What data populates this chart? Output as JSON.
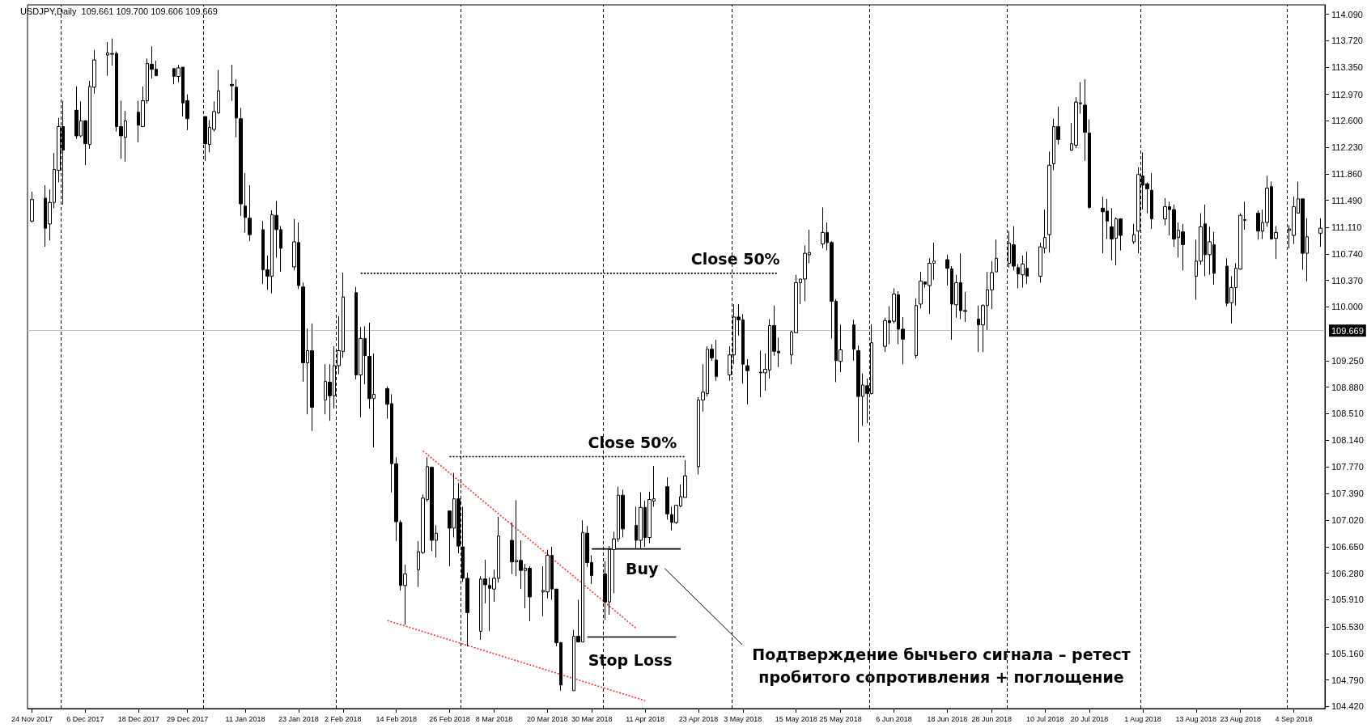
{
  "chart_data": {
    "type": "candlestick",
    "title": "USDJPY,Daily  109.661 109.700 109.606 109.669",
    "marker": "none",
    "x": [
      "2017-11-24",
      "2017-11-27",
      "2017-11-28",
      "2017-11-29",
      "2017-11-30",
      "2017-12-01",
      "2017-12-04",
      "2017-12-05",
      "2017-12-06",
      "2017-12-07",
      "2017-12-08",
      "2017-12-11",
      "2017-12-12",
      "2017-12-13",
      "2017-12-14",
      "2017-12-15",
      "2017-12-18",
      "2017-12-19",
      "2017-12-20",
      "2017-12-21",
      "2017-12-22",
      "2017-12-26",
      "2017-12-27",
      "2017-12-28",
      "2017-12-29",
      "2018-01-02",
      "2018-01-03",
      "2018-01-04",
      "2018-01-05",
      "2018-01-08",
      "2018-01-09",
      "2018-01-10",
      "2018-01-11",
      "2018-01-12",
      "2018-01-15",
      "2018-01-16",
      "2018-01-17",
      "2018-01-18",
      "2018-01-19",
      "2018-01-22",
      "2018-01-23",
      "2018-01-24",
      "2018-01-25",
      "2018-01-26",
      "2018-01-29",
      "2018-01-30",
      "2018-01-31",
      "2018-02-01",
      "2018-02-02",
      "2018-02-05",
      "2018-02-06",
      "2018-02-07",
      "2018-02-08",
      "2018-02-09",
      "2018-02-12",
      "2018-02-13",
      "2018-02-14",
      "2018-02-15",
      "2018-02-16",
      "2018-02-19",
      "2018-02-20",
      "2018-02-21",
      "2018-02-22",
      "2018-02-23",
      "2018-02-26",
      "2018-02-27",
      "2018-02-28",
      "2018-03-01",
      "2018-03-02",
      "2018-03-05",
      "2018-03-06",
      "2018-03-07",
      "2018-03-08",
      "2018-03-09",
      "2018-03-12",
      "2018-03-13",
      "2018-03-14",
      "2018-03-15",
      "2018-03-16",
      "2018-03-19",
      "2018-03-20",
      "2018-03-21",
      "2018-03-22",
      "2018-03-23",
      "2018-03-26",
      "2018-03-27",
      "2018-03-28",
      "2018-03-29",
      "2018-03-30",
      "2018-04-02",
      "2018-04-03",
      "2018-04-04",
      "2018-04-05",
      "2018-04-06",
      "2018-04-09",
      "2018-04-10",
      "2018-04-11",
      "2018-04-12",
      "2018-04-13",
      "2018-04-16",
      "2018-04-17",
      "2018-04-18",
      "2018-04-19",
      "2018-04-20",
      "2018-04-23",
      "2018-04-24",
      "2018-04-25",
      "2018-04-26",
      "2018-04-27",
      "2018-04-30",
      "2018-05-01",
      "2018-05-02",
      "2018-05-03",
      "2018-05-04",
      "2018-05-07",
      "2018-05-08",
      "2018-05-09",
      "2018-05-10",
      "2018-05-11",
      "2018-05-14",
      "2018-05-15",
      "2018-05-16",
      "2018-05-17",
      "2018-05-18",
      "2018-05-21",
      "2018-05-22",
      "2018-05-23",
      "2018-05-24",
      "2018-05-25",
      "2018-05-28",
      "2018-05-29",
      "2018-05-30",
      "2018-05-31",
      "2018-06-01",
      "2018-06-04",
      "2018-06-05",
      "2018-06-06",
      "2018-06-07",
      "2018-06-08",
      "2018-06-11",
      "2018-06-12",
      "2018-06-13",
      "2018-06-14",
      "2018-06-15",
      "2018-06-18",
      "2018-06-19",
      "2018-06-20",
      "2018-06-21",
      "2018-06-22",
      "2018-06-25",
      "2018-06-26",
      "2018-06-27",
      "2018-06-28",
      "2018-06-29",
      "2018-07-02",
      "2018-07-03",
      "2018-07-04",
      "2018-07-05",
      "2018-07-06",
      "2018-07-09",
      "2018-07-10",
      "2018-07-11",
      "2018-07-12",
      "2018-07-13",
      "2018-07-16",
      "2018-07-17",
      "2018-07-18",
      "2018-07-19",
      "2018-07-20",
      "2018-07-23",
      "2018-07-24",
      "2018-07-25",
      "2018-07-26",
      "2018-07-27",
      "2018-07-30",
      "2018-07-31",
      "2018-08-01",
      "2018-08-02",
      "2018-08-03",
      "2018-08-06",
      "2018-08-07",
      "2018-08-08",
      "2018-08-09",
      "2018-08-10",
      "2018-08-13",
      "2018-08-14",
      "2018-08-15",
      "2018-08-16",
      "2018-08-17",
      "2018-08-20",
      "2018-08-21",
      "2018-08-22",
      "2018-08-23",
      "2018-08-24",
      "2018-08-27",
      "2018-08-28",
      "2018-08-29",
      "2018-08-30",
      "2018-08-31",
      "2018-09-03",
      "2018-09-04",
      "2018-09-05",
      "2018-09-06",
      "2018-09-07",
      "2018-09-10"
    ],
    "ohlc": [
      [
        111.2,
        111.61,
        111.18,
        111.5
      ],
      [
        111.52,
        111.7,
        110.84,
        111.1
      ],
      [
        111.16,
        111.64,
        110.93,
        111.46
      ],
      [
        111.46,
        112.15,
        111.38,
        111.92
      ],
      [
        111.91,
        112.64,
        111.74,
        112.52
      ],
      [
        112.52,
        112.88,
        111.43,
        112.19
      ],
      [
        112.75,
        113.08,
        112.35,
        112.39
      ],
      [
        112.39,
        112.87,
        112.37,
        112.6
      ],
      [
        112.6,
        112.61,
        111.98,
        112.28
      ],
      [
        112.27,
        113.16,
        112.21,
        113.08
      ],
      [
        113.07,
        113.59,
        112.98,
        113.45
      ],
      [
        113.52,
        113.7,
        113.23,
        113.55
      ],
      [
        113.54,
        113.75,
        113.37,
        113.53
      ],
      [
        113.54,
        113.57,
        112.45,
        112.52
      ],
      [
        112.52,
        112.88,
        112.07,
        112.39
      ],
      [
        112.37,
        112.74,
        112.03,
        112.6
      ],
      [
        112.72,
        112.88,
        112.3,
        112.54
      ],
      [
        112.52,
        113.08,
        112.51,
        112.88
      ],
      [
        112.88,
        113.47,
        112.84,
        113.4
      ],
      [
        113.39,
        113.64,
        113.19,
        113.32
      ],
      [
        113.32,
        113.44,
        113.23,
        113.23
      ],
      [
        113.33,
        113.33,
        113.11,
        113.22
      ],
      [
        113.22,
        113.38,
        113.14,
        113.34
      ],
      [
        113.35,
        113.35,
        112.66,
        112.85
      ],
      [
        112.88,
        112.97,
        112.47,
        112.63
      ],
      [
        112.66,
        112.66,
        112.04,
        112.28
      ],
      [
        112.27,
        112.61,
        112.16,
        112.51
      ],
      [
        112.48,
        112.87,
        112.45,
        112.73
      ],
      [
        112.71,
        113.31,
        112.7,
        113.02
      ],
      [
        113.11,
        113.38,
        112.88,
        113.09
      ],
      [
        113.07,
        113.18,
        112.37,
        112.64
      ],
      [
        112.63,
        112.78,
        111.27,
        111.44
      ],
      [
        111.41,
        111.87,
        111.04,
        111.25
      ],
      [
        111.24,
        111.7,
        110.92,
        111.01
      ],
      [
        111.08,
        111.2,
        110.32,
        110.52
      ],
      [
        110.52,
        110.72,
        110.24,
        110.43
      ],
      [
        110.43,
        111.35,
        110.19,
        111.29
      ],
      [
        111.28,
        111.48,
        110.69,
        111.08
      ],
      [
        111.08,
        111.13,
        110.49,
        110.82
      ],
      [
        110.56,
        111.23,
        110.51,
        110.91
      ],
      [
        110.9,
        111.18,
        110.25,
        110.3
      ],
      [
        110.28,
        110.34,
        108.96,
        109.22
      ],
      [
        109.22,
        109.7,
        108.5,
        109.39
      ],
      [
        109.39,
        109.77,
        108.27,
        108.6
      ],
      [
        108.7,
        109.2,
        108.5,
        108.96
      ],
      [
        108.95,
        109.2,
        108.41,
        108.76
      ],
      [
        108.76,
        109.45,
        108.58,
        109.18
      ],
      [
        109.18,
        109.87,
        109.06,
        109.39
      ],
      [
        109.38,
        110.48,
        109.29,
        110.14
      ],
      [
        110.2,
        110.28,
        108.99,
        109.05
      ],
      [
        109.05,
        109.72,
        108.46,
        109.56
      ],
      [
        109.56,
        109.73,
        108.92,
        109.32
      ],
      [
        109.31,
        109.78,
        108.58,
        108.72
      ],
      [
        108.72,
        109.35,
        108.04,
        108.78
      ],
      [
        108.86,
        108.89,
        108.44,
        108.64
      ],
      [
        108.65,
        108.78,
        107.41,
        107.81
      ],
      [
        107.81,
        107.9,
        106.73,
        107.0
      ],
      [
        106.99,
        107.02,
        106.04,
        106.11
      ],
      [
        106.11,
        106.4,
        105.56,
        106.27
      ],
      [
        106.33,
        106.73,
        106.09,
        106.58
      ],
      [
        106.57,
        107.38,
        106.55,
        107.33
      ],
      [
        107.31,
        107.9,
        107.28,
        107.77
      ],
      [
        107.76,
        107.77,
        106.59,
        106.74
      ],
      [
        106.74,
        106.95,
        106.5,
        106.84
      ],
      [
        107.15,
        107.15,
        106.38,
        106.91
      ],
      [
        106.91,
        107.68,
        106.78,
        107.32
      ],
      [
        107.32,
        107.54,
        106.56,
        106.66
      ],
      [
        106.65,
        107.21,
        106.16,
        106.21
      ],
      [
        106.21,
        106.29,
        105.26,
        105.73
      ],
      [
        105.47,
        106.24,
        105.35,
        106.2
      ],
      [
        106.2,
        106.47,
        105.86,
        106.12
      ],
      [
        106.11,
        106.22,
        105.47,
        106.07
      ],
      [
        106.06,
        106.33,
        105.88,
        106.21
      ],
      [
        106.21,
        107.07,
        106.15,
        106.8
      ],
      [
        106.74,
        106.99,
        106.27,
        106.44
      ],
      [
        106.44,
        107.3,
        106.24,
        106.46
      ],
      [
        106.46,
        106.74,
        106.06,
        106.32
      ],
      [
        106.32,
        106.41,
        105.79,
        106.35
      ],
      [
        106.35,
        106.38,
        105.61,
        105.95
      ],
      [
        106.02,
        106.38,
        105.68,
        106.04
      ],
      [
        106.02,
        106.61,
        105.93,
        106.53
      ],
      [
        106.53,
        106.65,
        105.91,
        106.06
      ],
      [
        106.06,
        106.06,
        105.26,
        105.31
      ],
      [
        105.31,
        105.32,
        104.64,
        104.72
      ],
      [
        104.64,
        105.49,
        104.64,
        105.4
      ],
      [
        105.4,
        105.91,
        105.32,
        105.32
      ],
      [
        105.32,
        107.02,
        105.32,
        106.85
      ],
      [
        106.84,
        106.94,
        106.37,
        106.43
      ],
      [
        106.43,
        106.53,
        106.13,
        106.25
      ],
      [
        106.27,
        106.45,
        105.63,
        105.88
      ],
      [
        105.88,
        106.66,
        105.7,
        106.61
      ],
      [
        106.61,
        106.86,
        106.0,
        106.76
      ],
      [
        106.76,
        107.49,
        106.72,
        107.37
      ],
      [
        107.37,
        107.45,
        106.78,
        106.9
      ],
      [
        106.95,
        107.21,
        106.62,
        106.74
      ],
      [
        106.74,
        107.41,
        106.63,
        107.2
      ],
      [
        107.2,
        107.29,
        106.65,
        106.78
      ],
      [
        106.78,
        107.42,
        106.7,
        107.31
      ],
      [
        107.29,
        107.78,
        107.21,
        107.32
      ],
      [
        107.49,
        107.62,
        107.03,
        107.11
      ],
      [
        107.1,
        107.21,
        106.88,
        106.99
      ],
      [
        106.99,
        107.23,
        106.97,
        107.23
      ],
      [
        107.22,
        107.52,
        107.2,
        107.35
      ],
      [
        107.34,
        107.86,
        107.34,
        107.64
      ],
      [
        107.77,
        108.74,
        107.66,
        108.7
      ],
      [
        108.7,
        109.2,
        108.54,
        108.81
      ],
      [
        108.79,
        109.45,
        108.75,
        109.41
      ],
      [
        109.41,
        109.48,
        109.25,
        109.29
      ],
      [
        109.26,
        109.54,
        108.97,
        109.03
      ],
      [
        109.05,
        109.45,
        108.97,
        109.33
      ],
      [
        109.33,
        110.04,
        109.2,
        109.86
      ],
      [
        109.86,
        110.04,
        109.6,
        109.82
      ],
      [
        109.82,
        109.9,
        108.93,
        109.2
      ],
      [
        109.18,
        109.27,
        108.64,
        109.11
      ],
      [
        109.09,
        109.39,
        108.74,
        109.08
      ],
      [
        109.08,
        109.35,
        108.83,
        109.13
      ],
      [
        109.12,
        109.83,
        109.0,
        109.74
      ],
      [
        109.74,
        110.02,
        109.32,
        109.38
      ],
      [
        109.38,
        109.57,
        109.16,
        109.36
      ],
      [
        109.33,
        109.67,
        109.2,
        109.65
      ],
      [
        109.64,
        110.45,
        109.64,
        110.34
      ],
      [
        110.34,
        110.39,
        110.04,
        110.39
      ],
      [
        110.39,
        110.86,
        110.08,
        110.75
      ],
      [
        110.73,
        111.08,
        110.61,
        110.76
      ],
      [
        110.88,
        111.39,
        110.82,
        111.04
      ],
      [
        111.04,
        111.18,
        110.79,
        110.9
      ],
      [
        110.9,
        110.92,
        109.56,
        110.08
      ],
      [
        110.08,
        110.11,
        108.95,
        109.25
      ],
      [
        109.24,
        109.75,
        109.09,
        109.4
      ],
      [
        109.75,
        109.82,
        109.25,
        109.41
      ],
      [
        109.39,
        109.46,
        108.11,
        108.75
      ],
      [
        108.75,
        109.07,
        108.34,
        108.91
      ],
      [
        108.9,
        109.0,
        108.38,
        108.79
      ],
      [
        108.79,
        109.76,
        108.78,
        109.5
      ],
      [
        109.45,
        109.85,
        109.37,
        109.81
      ],
      [
        109.81,
        110.01,
        109.48,
        109.78
      ],
      [
        109.8,
        110.26,
        109.77,
        110.18
      ],
      [
        110.17,
        110.22,
        109.48,
        109.69
      ],
      [
        109.69,
        109.86,
        109.2,
        109.55
      ],
      [
        109.32,
        110.12,
        109.28,
        110.02
      ],
      [
        110.04,
        110.49,
        109.98,
        110.36
      ],
      [
        110.35,
        110.35,
        110.27,
        110.32
      ],
      [
        110.3,
        110.68,
        109.9,
        110.61
      ],
      [
        110.61,
        110.9,
        110.38,
        110.64
      ],
      [
        110.66,
        110.73,
        110.3,
        110.54
      ],
      [
        110.53,
        110.57,
        109.54,
        110.04
      ],
      [
        110.03,
        110.45,
        109.85,
        110.34
      ],
      [
        110.34,
        110.75,
        109.83,
        109.95
      ],
      [
        109.95,
        110.21,
        109.79,
        109.94
      ],
      [
        109.83,
        110.02,
        109.37,
        109.75
      ],
      [
        109.75,
        110.04,
        109.37,
        110.02
      ],
      [
        110.02,
        110.49,
        109.68,
        110.24
      ],
      [
        110.24,
        110.64,
        109.97,
        110.48
      ],
      [
        110.49,
        110.94,
        110.49,
        110.68
      ],
      [
        110.61,
        111.06,
        110.55,
        110.89
      ],
      [
        110.87,
        111.13,
        110.51,
        110.57
      ],
      [
        110.55,
        110.6,
        110.26,
        110.46
      ],
      [
        110.45,
        110.72,
        110.27,
        110.6
      ],
      [
        110.54,
        110.77,
        110.32,
        110.43
      ],
      [
        110.43,
        110.9,
        110.34,
        110.84
      ],
      [
        110.82,
        111.36,
        110.75,
        110.97
      ],
      [
        111.01,
        112.17,
        110.76,
        111.98
      ],
      [
        112.0,
        112.63,
        111.91,
        112.52
      ],
      [
        112.52,
        112.8,
        112.27,
        112.34
      ],
      [
        112.19,
        112.57,
        112.18,
        112.28
      ],
      [
        112.26,
        112.93,
        112.22,
        112.86
      ],
      [
        112.85,
        113.14,
        112.7,
        112.84
      ],
      [
        112.82,
        113.18,
        112.04,
        112.44
      ],
      [
        112.43,
        112.62,
        111.37,
        111.39
      ],
      [
        111.38,
        111.54,
        110.75,
        111.33
      ],
      [
        111.34,
        111.51,
        110.95,
        111.2
      ],
      [
        111.12,
        111.38,
        110.65,
        110.95
      ],
      [
        110.96,
        111.25,
        110.58,
        111.23
      ],
      [
        111.23,
        111.24,
        110.79,
        111.0
      ],
      [
        110.91,
        111.16,
        110.88,
        111.01
      ],
      [
        111.06,
        111.95,
        110.75,
        111.85
      ],
      [
        111.83,
        112.16,
        111.36,
        111.7
      ],
      [
        111.72,
        111.74,
        111.31,
        111.65
      ],
      [
        111.63,
        111.87,
        111.09,
        111.23
      ],
      [
        111.23,
        111.52,
        111.14,
        111.4
      ],
      [
        111.4,
        111.47,
        111.0,
        111.36
      ],
      [
        111.36,
        111.43,
        110.84,
        110.95
      ],
      [
        110.97,
        111.18,
        110.69,
        111.07
      ],
      [
        111.05,
        111.16,
        110.51,
        110.87
      ],
      [
        110.43,
        110.94,
        110.1,
        110.64
      ],
      [
        110.64,
        111.31,
        110.59,
        111.12
      ],
      [
        111.16,
        111.43,
        110.43,
        110.73
      ],
      [
        110.73,
        111.12,
        110.45,
        110.91
      ],
      [
        110.87,
        111.05,
        110.31,
        110.47
      ],
      [
        110.57,
        110.68,
        110.01,
        110.05
      ],
      [
        110.06,
        110.43,
        109.77,
        110.27
      ],
      [
        110.27,
        110.61,
        110.02,
        110.54
      ],
      [
        110.53,
        111.31,
        110.52,
        111.28
      ],
      [
        111.21,
        111.47,
        111.08,
        111.22
      ],
      [
        111.31,
        111.35,
        110.94,
        111.06
      ],
      [
        111.06,
        111.36,
        110.95,
        111.18
      ],
      [
        111.18,
        111.83,
        111.12,
        111.66
      ],
      [
        111.68,
        111.75,
        110.94,
        110.95
      ],
      [
        110.96,
        111.13,
        110.67,
        111.04
      ],
      [
        111.07,
        111.14,
        110.82,
        111.09
      ],
      [
        111.0,
        111.54,
        110.88,
        111.4
      ],
      [
        111.31,
        111.75,
        111.31,
        111.51
      ],
      [
        111.51,
        111.51,
        110.52,
        110.75
      ],
      [
        110.75,
        111.24,
        110.36,
        110.98
      ],
      [
        111.03,
        111.24,
        110.84,
        111.1
      ]
    ],
    "xticks": [
      {
        "value": "2017-11-24",
        "label": "24 Nov 2017"
      },
      {
        "value": "2017-12-06",
        "label": "6 Dec 2017"
      },
      {
        "value": "2017-12-18",
        "label": "18 Dec 2017"
      },
      {
        "value": "2017-12-29",
        "label": "29 Dec 2017"
      },
      {
        "value": "2018-01-11",
        "label": "11 Jan 2018"
      },
      {
        "value": "2018-01-23",
        "label": "23 Jan 2018"
      },
      {
        "value": "2018-02-02",
        "label": "2 Feb 2018"
      },
      {
        "value": "2018-02-14",
        "label": "14 Feb 2018"
      },
      {
        "value": "2018-02-26",
        "label": "26 Feb 2018"
      },
      {
        "value": "2018-03-08",
        "label": "8 Mar 2018"
      },
      {
        "value": "2018-03-20",
        "label": "20 Mar 2018"
      },
      {
        "value": "2018-03-30",
        "label": "30 Mar 2018"
      },
      {
        "value": "2018-04-11",
        "label": "11 Apr 2018"
      },
      {
        "value": "2018-04-23",
        "label": "23 Apr 2018"
      },
      {
        "value": "2018-05-03",
        "label": "3 May 2018"
      },
      {
        "value": "2018-05-15",
        "label": "15 May 2018"
      },
      {
        "value": "2018-05-25",
        "label": "25 May 2018"
      },
      {
        "value": "2018-06-06",
        "label": "6 Jun 2018"
      },
      {
        "value": "2018-06-18",
        "label": "18 Jun 2018"
      },
      {
        "value": "2018-06-28",
        "label": "28 Jun 2018"
      },
      {
        "value": "2018-07-10",
        "label": "10 Jul 2018"
      },
      {
        "value": "2018-07-20",
        "label": "20 Jul 2018"
      },
      {
        "value": "2018-08-01",
        "label": "1 Aug 2018"
      },
      {
        "value": "2018-08-13",
        "label": "13 Aug 2018"
      },
      {
        "value": "2018-08-23",
        "label": "23 Aug 2018"
      },
      {
        "value": "2018-09-04",
        "label": "4 Sep 2018"
      }
    ],
    "xlim": [
      "2017-11-23",
      "2018-09-11"
    ],
    "ylim": [
      104.39,
      114.22
    ],
    "yticks": [
      {
        "value": 104.42,
        "label": "104.420"
      },
      {
        "value": 104.79,
        "label": "104.790"
      },
      {
        "value": 105.16,
        "label": "105.160"
      },
      {
        "value": 105.53,
        "label": "105.530"
      },
      {
        "value": 105.91,
        "label": "105.910"
      },
      {
        "value": 106.28,
        "label": "106.280"
      },
      {
        "value": 106.65,
        "label": "106.650"
      },
      {
        "value": 107.02,
        "label": "107.020"
      },
      {
        "value": 107.39,
        "label": "107.390"
      },
      {
        "value": 107.77,
        "label": "107.770"
      },
      {
        "value": 108.14,
        "label": "108.140"
      },
      {
        "value": 108.51,
        "label": "108.510"
      },
      {
        "value": 108.88,
        "label": "108.880"
      },
      {
        "value": 109.25,
        "label": "109.250"
      },
      {
        "value": 110.0,
        "label": "110.000"
      },
      {
        "value": 110.37,
        "label": "110.370"
      },
      {
        "value": 110.74,
        "label": "110.740"
      },
      {
        "value": 111.11,
        "label": "111.110"
      },
      {
        "value": 111.49,
        "label": "111.490"
      },
      {
        "value": 111.86,
        "label": "111.860"
      },
      {
        "value": 112.23,
        "label": "112.230"
      },
      {
        "value": 112.6,
        "label": "112.600"
      },
      {
        "value": 112.97,
        "label": "112.970"
      },
      {
        "value": 113.35,
        "label": "113.350"
      },
      {
        "value": 113.72,
        "label": "113.720"
      },
      {
        "value": 114.09,
        "label": "114.090"
      }
    ],
    "ref_lines": [
      {
        "axis": "y",
        "value": 109.669,
        "label": "109.669",
        "color": "#c0c0c0",
        "line_style": "solid"
      },
      {
        "axis": "x",
        "value": "2017-11-30T12:00",
        "label": null,
        "color": "#000000",
        "line_style": "dashed"
      },
      {
        "axis": "x",
        "value": "2018-01-01T12:00",
        "label": null,
        "color": "#000000",
        "line_style": "dashed"
      },
      {
        "axis": "x",
        "value": "2018-01-31T12:00",
        "label": null,
        "color": "#000000",
        "line_style": "dashed"
      },
      {
        "axis": "x",
        "value": "2018-02-28T12:00",
        "label": null,
        "color": "#000000",
        "line_style": "dashed"
      },
      {
        "axis": "x",
        "value": "2018-04-01T12:00",
        "label": null,
        "color": "#000000",
        "line_style": "dashed"
      },
      {
        "axis": "x",
        "value": "2018-04-30T12:00",
        "label": null,
        "color": "#000000",
        "line_style": "dashed"
      },
      {
        "axis": "x",
        "value": "2018-05-31T12:00",
        "label": null,
        "color": "#000000",
        "line_style": "dashed"
      },
      {
        "axis": "x",
        "value": "2018-07-01T12:00",
        "label": null,
        "color": "#000000",
        "line_style": "dashed"
      },
      {
        "axis": "x",
        "value": "2018-07-31T12:00",
        "label": null,
        "color": "#000000",
        "line_style": "dashed"
      },
      {
        "axis": "x",
        "value": "2018-09-02T12:00",
        "label": null,
        "color": "#000000",
        "line_style": "dashed"
      }
    ],
    "series": [
      {
        "type": "line",
        "color": "#000000",
        "line_style": "dotted",
        "x": [
          "2018-02-06",
          "2018-05-11"
        ],
        "values": [
          110.47,
          110.47
        ]
      },
      {
        "type": "line",
        "color": "#000000",
        "line_style": "dotted",
        "x": [
          "2018-02-26",
          "2018-04-20"
        ],
        "values": [
          107.91,
          107.91
        ]
      },
      {
        "type": "line",
        "color": "#000000",
        "line_style": "solid",
        "x": [
          "2018-03-30",
          "2018-04-19"
        ],
        "values": [
          106.62,
          106.62
        ]
      },
      {
        "type": "line",
        "color": "#000000",
        "line_style": "solid",
        "x": [
          "2018-03-29",
          "2018-04-18"
        ],
        "values": [
          105.39,
          105.39
        ]
      },
      {
        "type": "line",
        "color": "#ff3333",
        "line_style": "dotted",
        "x": [
          "2018-02-20",
          "2018-04-09"
        ],
        "values": [
          107.99,
          105.51
        ]
      },
      {
        "type": "line",
        "color": "#ff3333",
        "line_style": "dotted",
        "x": [
          "2018-02-12",
          "2018-04-11"
        ],
        "values": [
          105.62,
          104.5
        ]
      }
    ],
    "annotations": [
      "Close 50%",
      "Close 50%",
      "Buy",
      "Stop Loss",
      "Подтверждение бычьего сигнала – ретест\nпробитого сопротивления + поглощение"
    ]
  }
}
